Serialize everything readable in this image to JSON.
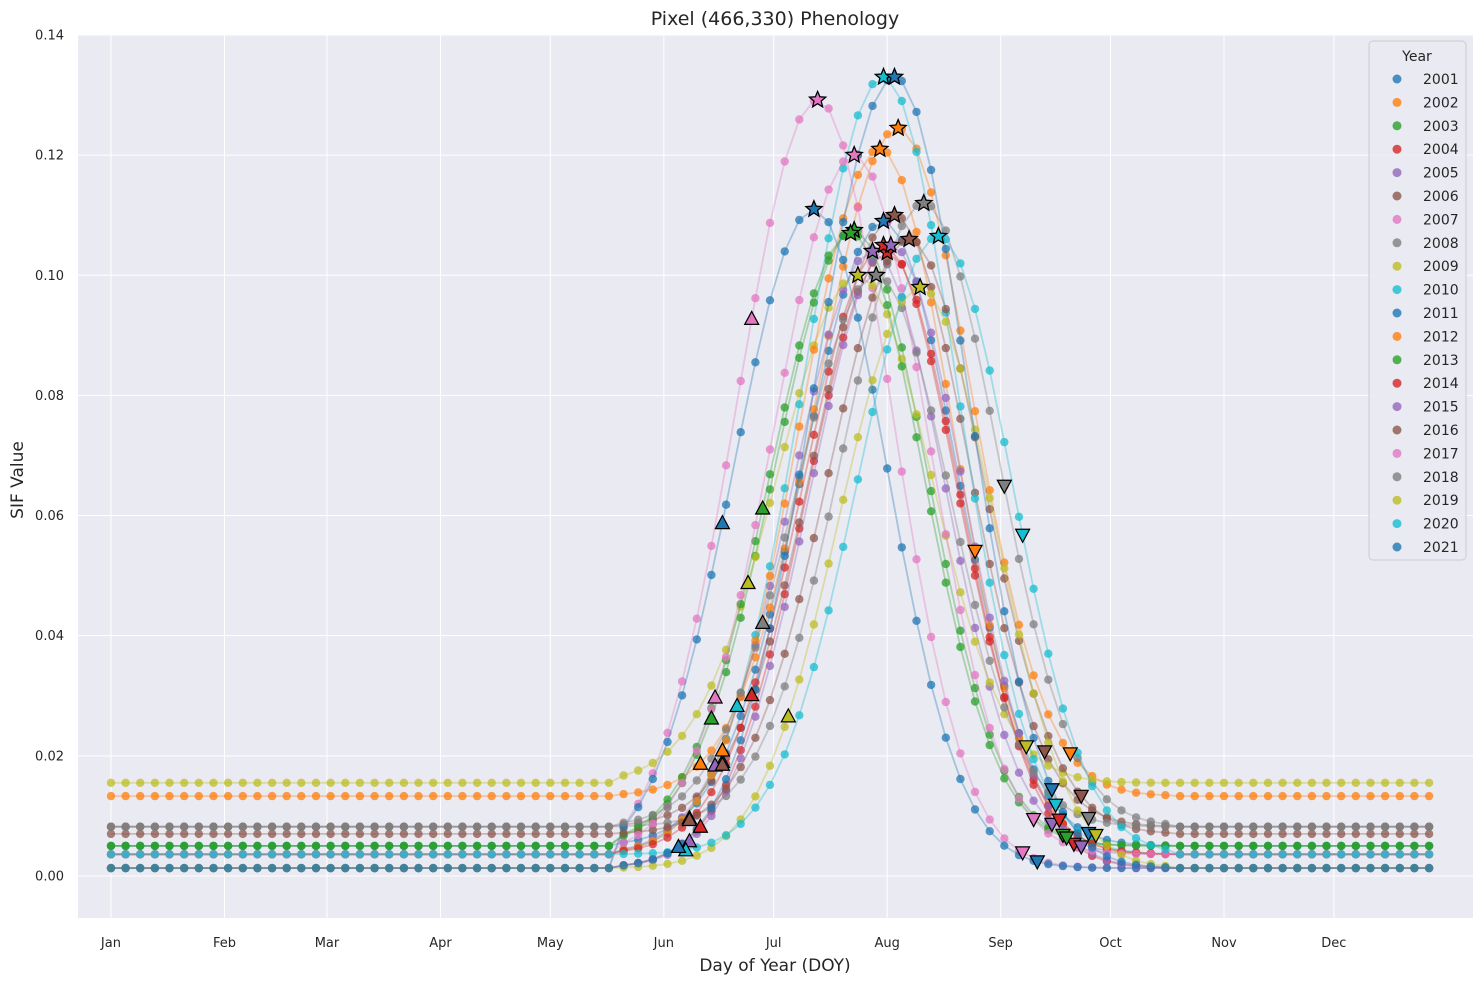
{
  "chart_data": {
    "type": "line",
    "title": "Pixel (466,330) Phenology",
    "xlabel": "Day of Year (DOY)",
    "ylabel": "SIF Value",
    "xlim": [
      -8,
      373
    ],
    "ylim": [
      -0.007,
      0.14
    ],
    "x_ticks": [
      {
        "value": 1,
        "label": "Jan"
      },
      {
        "value": 32,
        "label": "Feb"
      },
      {
        "value": 60,
        "label": "Mar"
      },
      {
        "value": 91,
        "label": "Apr"
      },
      {
        "value": 121,
        "label": "May"
      },
      {
        "value": 152,
        "label": "Jun"
      },
      {
        "value": 182,
        "label": "Jul"
      },
      {
        "value": 213,
        "label": "Aug"
      },
      {
        "value": 244,
        "label": "Sep"
      },
      {
        "value": 274,
        "label": "Oct"
      },
      {
        "value": 305,
        "label": "Nov"
      },
      {
        "value": 335,
        "label": "Dec"
      }
    ],
    "y_ticks": [
      {
        "value": 0.0,
        "label": "0.00"
      },
      {
        "value": 0.02,
        "label": "0.02"
      },
      {
        "value": 0.04,
        "label": "0.04"
      },
      {
        "value": 0.06,
        "label": "0.06"
      },
      {
        "value": 0.08,
        "label": "0.08"
      },
      {
        "value": 0.1,
        "label": "0.10"
      },
      {
        "value": 0.12,
        "label": "0.12"
      },
      {
        "value": 0.14,
        "label": "0.14"
      }
    ],
    "grid": true,
    "legend": {
      "title": "Year",
      "placement": "top-right"
    },
    "x": [
      1,
      5,
      9,
      13,
      17,
      21,
      25,
      29,
      33,
      37,
      41,
      45,
      49,
      53,
      57,
      61,
      65,
      69,
      73,
      77,
      81,
      85,
      89,
      93,
      97,
      101,
      105,
      109,
      113,
      117,
      121,
      125,
      129,
      133,
      137,
      141,
      145,
      149,
      153,
      157,
      161,
      165,
      169,
      173,
      177,
      181,
      185,
      189,
      193,
      197,
      201,
      205,
      209,
      213,
      217,
      221,
      225,
      229,
      233,
      237,
      241,
      245,
      249,
      253,
      257,
      261,
      265,
      269,
      273,
      277,
      281,
      285,
      289,
      293,
      297,
      301,
      305,
      309,
      313,
      317,
      321,
      325,
      329,
      333,
      337,
      341,
      345,
      349,
      353,
      357,
      361
    ],
    "series": [
      {
        "name": "2001",
        "color": "#1f77b4",
        "base": 0.005,
        "peak": 0.109,
        "peak_doy": 212,
        "sos": 168,
        "eos": 268
      },
      {
        "name": "2002",
        "color": "#ff7f0e",
        "base": 0.0133,
        "peak": 0.1245,
        "peak_doy": 216,
        "sos": 162,
        "eos": 263
      },
      {
        "name": "2003",
        "color": "#2ca02c",
        "base": 0.005,
        "peak": 0.1075,
        "peak_doy": 204,
        "sos": 165,
        "eos": 261
      },
      {
        "name": "2004",
        "color": "#d62728",
        "base": 0.0013,
        "peak": 0.1038,
        "peak_doy": 213,
        "sos": 162,
        "eos": 264
      },
      {
        "name": "2005",
        "color": "#9467bd",
        "base": 0.0036,
        "peak": 0.104,
        "peak_doy": 209,
        "sos": 166,
        "eos": 258
      },
      {
        "name": "2006",
        "color": "#8c564b",
        "base": 0.0082,
        "peak": 0.11,
        "peak_doy": 215,
        "sos": 168,
        "eos": 256
      },
      {
        "name": "2007",
        "color": "#e377c2",
        "base": 0.0013,
        "peak": 0.1292,
        "peak_doy": 194,
        "sos": 176,
        "eos": 250
      },
      {
        "name": "2008",
        "color": "#7f7f7f",
        "base": 0.0082,
        "peak": 0.112,
        "peak_doy": 223,
        "sos": 159,
        "eos": 245
      },
      {
        "name": "2009",
        "color": "#bcbd22",
        "base": 0.0155,
        "peak": 0.1,
        "peak_doy": 205,
        "sos": 175,
        "eos": 251
      },
      {
        "name": "2010",
        "color": "#17becf",
        "base": 0.0036,
        "peak": 0.133,
        "peak_doy": 212,
        "sos": 172,
        "eos": 259
      },
      {
        "name": "2011",
        "color": "#1f77b4",
        "base": 0.0013,
        "peak": 0.111,
        "peak_doy": 193,
        "sos": 168,
        "eos": 254
      },
      {
        "name": "2012",
        "color": "#ff7f0e",
        "base": 0.0036,
        "peak": 0.121,
        "peak_doy": 211,
        "sos": 168,
        "eos": 237
      },
      {
        "name": "2013",
        "color": "#2ca02c",
        "base": 0.005,
        "peak": 0.107,
        "peak_doy": 203,
        "sos": 179,
        "eos": 262
      },
      {
        "name": "2014",
        "color": "#d62728",
        "base": 0.0036,
        "peak": 0.105,
        "peak_doy": 212,
        "sos": 176,
        "eos": 260
      },
      {
        "name": "2015",
        "color": "#9467bd",
        "base": 0.0013,
        "peak": 0.105,
        "peak_doy": 214,
        "sos": 159,
        "eos": 266
      },
      {
        "name": "2016",
        "color": "#8c564b",
        "base": 0.007,
        "peak": 0.106,
        "peak_doy": 219,
        "sos": 159,
        "eos": 266
      },
      {
        "name": "2017",
        "color": "#e377c2",
        "base": 0.0036,
        "peak": 0.12,
        "peak_doy": 204,
        "sos": 166,
        "eos": 253
      },
      {
        "name": "2018",
        "color": "#7f7f7f",
        "base": 0.0082,
        "peak": 0.1,
        "peak_doy": 210,
        "sos": 179,
        "eos": 268
      },
      {
        "name": "2019",
        "color": "#bcbd22",
        "base": 0.0013,
        "peak": 0.098,
        "peak_doy": 222,
        "sos": 186,
        "eos": 270
      },
      {
        "name": "2020",
        "color": "#17becf",
        "base": 0.0036,
        "peak": 0.1065,
        "peak_doy": 227,
        "sos": 158,
        "eos": 250
      },
      {
        "name": "2021",
        "color": "#1f77b4",
        "base": 0.0013,
        "peak": 0.133,
        "peak_doy": 215,
        "sos": 156,
        "eos": 258
      }
    ]
  }
}
